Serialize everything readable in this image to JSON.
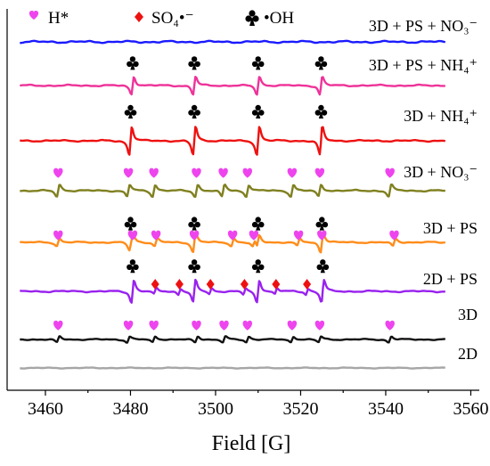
{
  "chart_data": {
    "type": "line",
    "xlabel": "Field [G]",
    "ylabel": "",
    "xlim": [
      3451,
      3562
    ],
    "xticks": [
      3460,
      3480,
      3500,
      3520,
      3540,
      3560
    ],
    "yaxis_ticks": "none",
    "grid": false,
    "legend": {
      "placement": "top-left",
      "items": [
        {
          "name": "H*",
          "marker": "heart",
          "color": "#ee44ee"
        },
        {
          "name": "SO₄•⁻",
          "marker": "diamond",
          "color": "#ee1111"
        },
        {
          "name": "•OH",
          "marker": "club",
          "color": "#000000"
        }
      ]
    },
    "series": [
      {
        "name": "3D + PS + NO₃⁻",
        "color": "#1a1aff",
        "peaks": {
          "H*": [],
          "SO4": [],
          "OH": []
        }
      },
      {
        "name": "3D + PS + NH₄⁺",
        "color": "#ee3399",
        "peaks": {
          "H*": [],
          "SO4": [],
          "OH": [
            3480.5,
            3495.0,
            3510.0,
            3524.8
          ]
        }
      },
      {
        "name": "3D + NH₄⁺",
        "color": "#ee1111",
        "peaks": {
          "H*": [],
          "SO4": [],
          "OH": [
            3480.0,
            3495.0,
            3510.0,
            3524.8
          ]
        }
      },
      {
        "name": "3D + NO₃⁻",
        "color": "#808020",
        "peaks": {
          "H*": [
            3463.0,
            3479.5,
            3485.5,
            3495.5,
            3501.8,
            3507.5,
            3518.0,
            3524.5,
            3541.0
          ],
          "SO4": [],
          "OH": []
        }
      },
      {
        "name": "3D + PS",
        "color": "#ff8c1a",
        "peaks": {
          "H*": [
            3463.0,
            3480.5,
            3486.0,
            3495.0,
            3504.0,
            3509.0,
            3519.5,
            3525.0,
            3542.0
          ],
          "SO4": [],
          "OH": [
            3480.0,
            3495.0,
            3510.0,
            3525.0
          ]
        }
      },
      {
        "name": "2D + PS",
        "color": "#9922ee",
        "peaks": {
          "H*": [],
          "SO4": [
            3485.8,
            3491.5,
            3498.8,
            3506.8,
            3514.2,
            3521.5
          ],
          "OH": [
            3480.5,
            3495.0,
            3510.0,
            3525.2
          ]
        }
      },
      {
        "name": "3D",
        "color": "#111111",
        "peaks": {
          "H*": [
            3463.0,
            3479.5,
            3485.5,
            3495.5,
            3502.0,
            3507.5,
            3518.0,
            3524.5,
            3541.0
          ],
          "SO4": [],
          "OH": []
        }
      },
      {
        "name": "2D",
        "color": "#a6a6a6",
        "peaks": {
          "H*": [],
          "SO4": [],
          "OH": []
        }
      }
    ]
  }
}
